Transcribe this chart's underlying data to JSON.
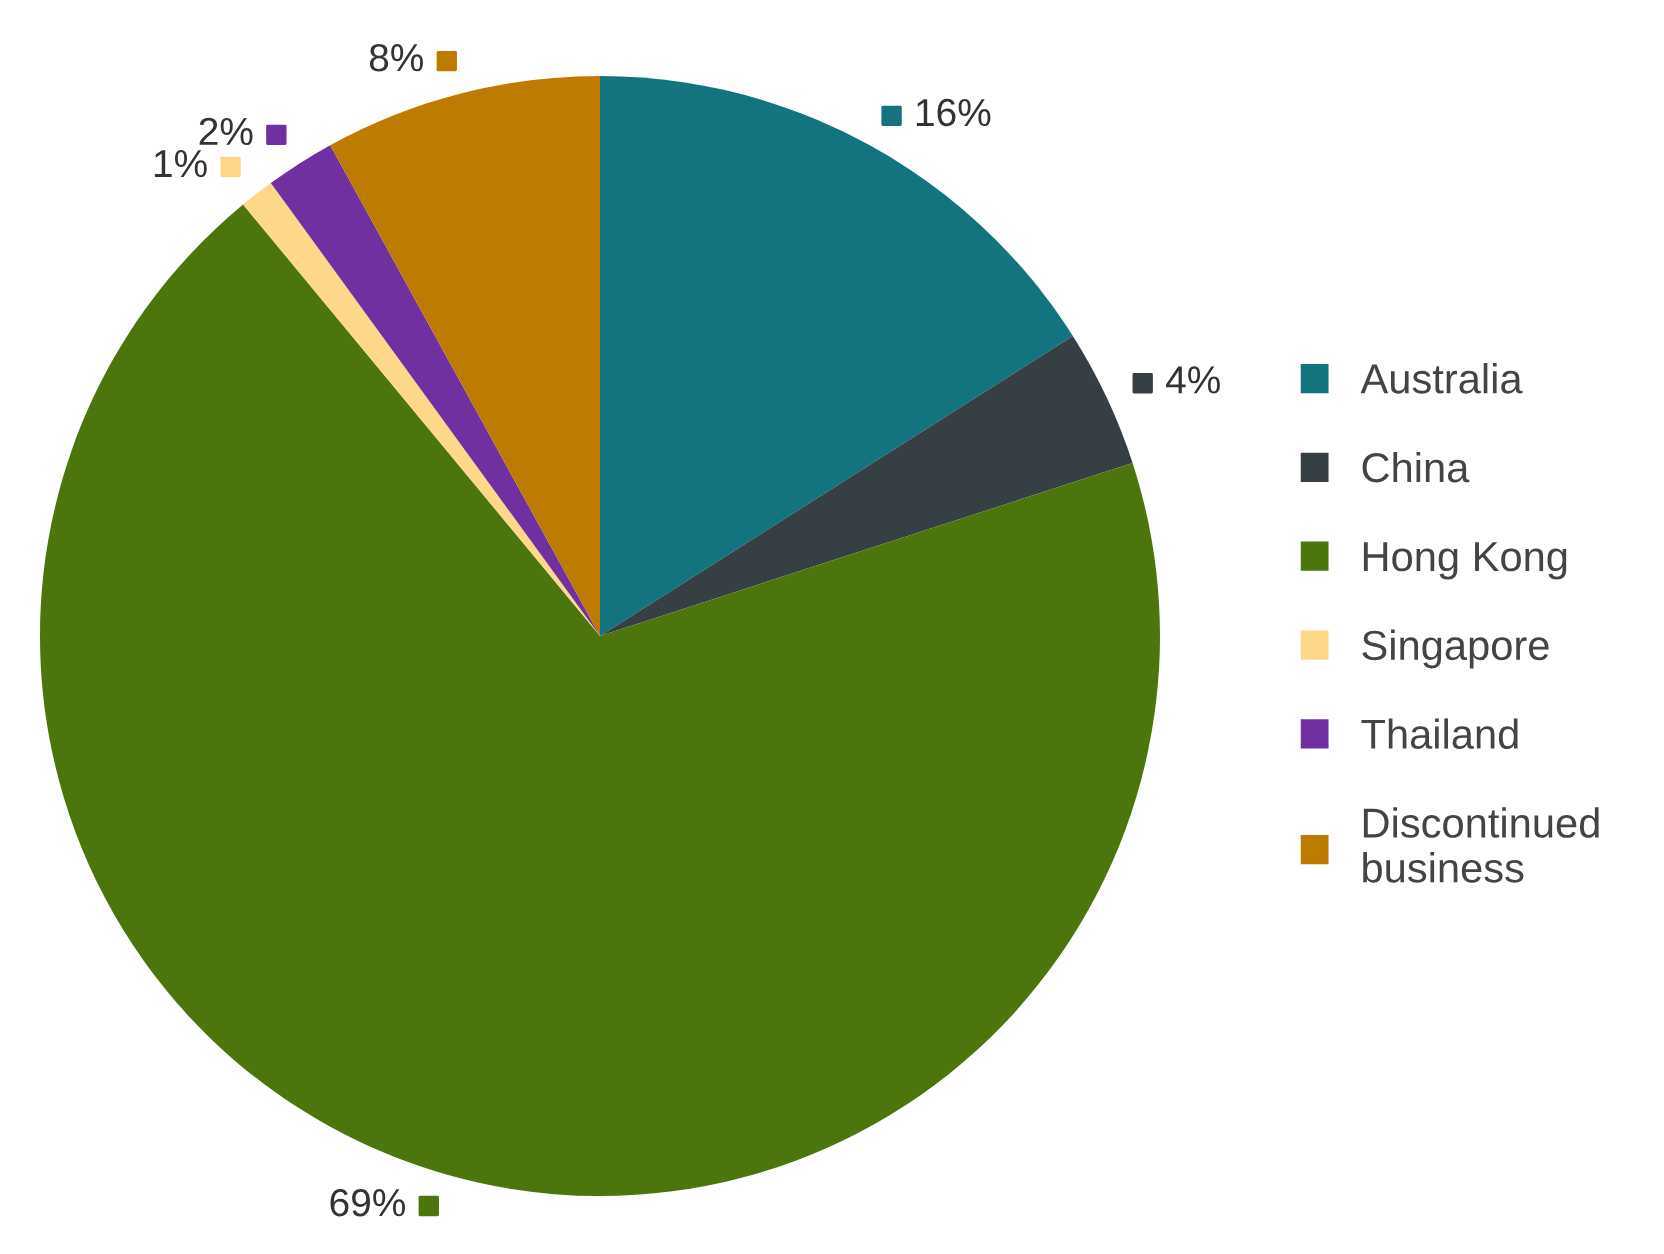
{
  "chart_data": {
    "type": "pie",
    "categories": [
      "Australia",
      "China",
      "Hong Kong",
      "Singapore",
      "Thailand",
      "Discontinued\nbusiness"
    ],
    "values": [
      16,
      4,
      69,
      1,
      2,
      8
    ],
    "colors": [
      "#13737f",
      "#363f44",
      "#4c750e",
      "#fdd88a",
      "#7030a0",
      "#bd7b00"
    ],
    "value_labels": [
      "16%",
      "4%",
      "69%",
      "1%",
      "2%",
      "8%"
    ],
    "legend": "right"
  }
}
